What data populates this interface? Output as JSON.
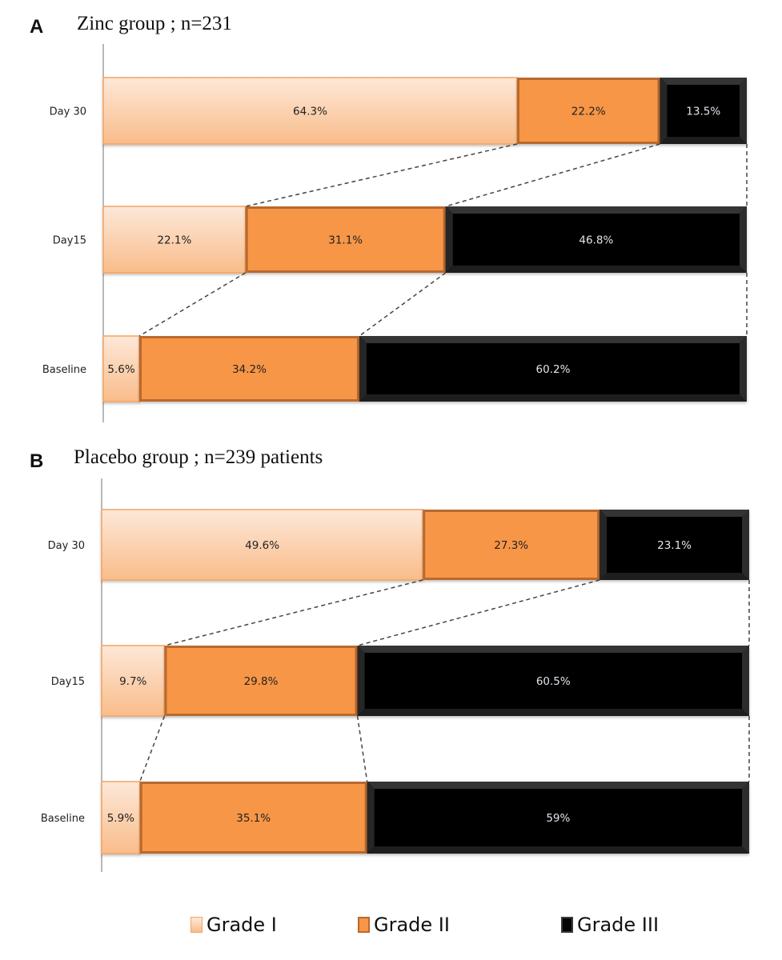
{
  "colors": {
    "grade1_top": "#fde8d8",
    "grade1_bottom": "#f9bc8a",
    "grade1_border": "#f5a35f",
    "grade2_fill": "#f79646",
    "grade2_border": "#b9692d",
    "grade3_fill": "#050505",
    "grade3_bevel": "#3a3a3a",
    "dark_text": "#222222",
    "light_text": "#dfe6ee",
    "connector": "#444444",
    "axis": "#888888"
  },
  "legend": [
    {
      "key": "grade1",
      "label": "Grade I"
    },
    {
      "key": "grade2",
      "label": "Grade II"
    },
    {
      "key": "grade3",
      "label": "Grade III"
    }
  ],
  "chart_data": [
    {
      "type": "bar",
      "orientation": "horizontal",
      "stacked": "100%",
      "panel": "A",
      "title": "Zinc group ; n=231",
      "categories": [
        "Day 30",
        "Day15",
        "Baseline"
      ],
      "series": [
        {
          "name": "Grade I",
          "values": [
            64.3,
            22.1,
            5.6
          ],
          "labels": [
            "64.3%",
            "22.1%",
            "5.6%"
          ]
        },
        {
          "name": "Grade II",
          "values": [
            22.2,
            31.1,
            34.2
          ],
          "labels": [
            "22.2%",
            "31.1%",
            "34.2%"
          ]
        },
        {
          "name": "Grade III",
          "values": [
            13.5,
            46.8,
            60.2
          ],
          "labels": [
            "13.5%",
            "46.8%",
            "60.2%"
          ]
        }
      ],
      "xlim": [
        0,
        100
      ],
      "xlabel": "",
      "ylabel": "",
      "grid": false,
      "connectors": "dashed lines linking segment boundaries between adjacent bars"
    },
    {
      "type": "bar",
      "orientation": "horizontal",
      "stacked": "100%",
      "panel": "B",
      "title": "Placebo group ; n=239 patients",
      "categories": [
        "Day 30",
        "Day15",
        "Baseline"
      ],
      "series": [
        {
          "name": "Grade I",
          "values": [
            49.6,
            9.7,
            5.9
          ],
          "labels": [
            "49.6%",
            "9.7%",
            "5.9%"
          ]
        },
        {
          "name": "Grade II",
          "values": [
            27.3,
            29.8,
            35.1
          ],
          "labels": [
            "27.3%",
            "29.8%",
            "35.1%"
          ]
        },
        {
          "name": "Grade III",
          "values": [
            23.1,
            60.5,
            59.0
          ],
          "labels": [
            "23.1%",
            "60.5%",
            "59%"
          ]
        }
      ],
      "xlim": [
        0,
        100
      ],
      "xlabel": "",
      "ylabel": "",
      "grid": false,
      "legend_position": "bottom",
      "connectors": "dashed lines linking segment boundaries between adjacent bars"
    }
  ]
}
